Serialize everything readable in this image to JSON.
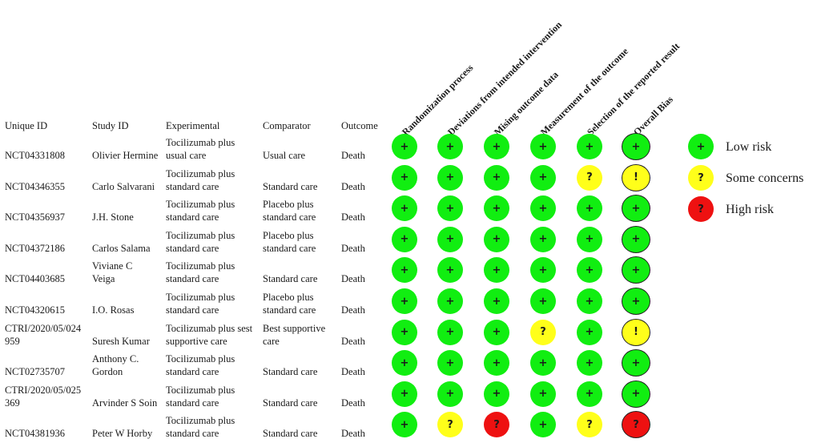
{
  "columns": {
    "unique_id": "Unique ID",
    "study_id": "Study ID",
    "experimental": "Experimental",
    "comparator": "Comparator",
    "outcome": "Outcome"
  },
  "domains": [
    "Randomization process",
    "Deviations from intended intervention",
    "Mising outcome data",
    "Measurement of the outcome",
    "Selection of the reported result",
    "Overall Bias"
  ],
  "rows": [
    {
      "unique_id": "NCT04331808",
      "study_id": "Olivier Hermine",
      "experimental": "Tocilizumab plus\nusual care",
      "comparator": "Usual care",
      "outcome": "Death",
      "judgements": [
        "low",
        "low",
        "low",
        "low",
        "low",
        "low"
      ]
    },
    {
      "unique_id": "NCT04346355",
      "study_id": "Carlo Salvarani",
      "experimental": "Tocilizumab plus\nstandard care",
      "comparator": "Standard care",
      "outcome": "Death",
      "judgements": [
        "low",
        "low",
        "low",
        "low",
        "some",
        "some"
      ]
    },
    {
      "unique_id": "NCT04356937",
      "study_id": "J.H. Stone",
      "experimental": "Tocilizumab plus\nstandard care",
      "comparator": "Placebo plus\nstandard care",
      "outcome": "Death",
      "judgements": [
        "low",
        "low",
        "low",
        "low",
        "low",
        "low"
      ]
    },
    {
      "unique_id": "NCT04372186",
      "study_id": "Carlos Salama",
      "experimental": "Tocilizumab plus\nstandard care",
      "comparator": "Placebo plus\nstandard care",
      "outcome": "Death",
      "judgements": [
        "low",
        "low",
        "low",
        "low",
        "low",
        "low"
      ]
    },
    {
      "unique_id": "NCT04403685",
      "study_id": "Viviane C\nVeiga",
      "experimental": "Tocilizumab plus\nstandard care",
      "comparator": "Standard care",
      "outcome": "Death",
      "judgements": [
        "low",
        "low",
        "low",
        "low",
        "low",
        "low"
      ]
    },
    {
      "unique_id": "NCT04320615",
      "study_id": "I.O. Rosas",
      "experimental": "Tocilizumab plus\nstandard care",
      "comparator": "Placebo plus\nstandard care",
      "outcome": "Death",
      "judgements": [
        "low",
        "low",
        "low",
        "low",
        "low",
        "low"
      ]
    },
    {
      "unique_id": "CTRI/2020/05/024\n959",
      "study_id": "Suresh Kumar",
      "experimental": "Tocilizumab plus sest\nsupportive care",
      "comparator": "Best supportive\ncare",
      "outcome": "Death",
      "judgements": [
        "low",
        "low",
        "low",
        "some",
        "low",
        "some"
      ]
    },
    {
      "unique_id": "NCT02735707",
      "study_id": "Anthony C.\nGordon",
      "experimental": "Tocilizumab plus\nstandard care",
      "comparator": "Standard care",
      "outcome": "Death",
      "judgements": [
        "low",
        "low",
        "low",
        "low",
        "low",
        "low"
      ]
    },
    {
      "unique_id": "CTRI/2020/05/025\n369",
      "study_id": "Arvinder S Soin",
      "experimental": "Tocilizumab plus\nstandard care",
      "comparator": "Standard care",
      "outcome": "Death",
      "judgements": [
        "low",
        "low",
        "low",
        "low",
        "low",
        "low"
      ]
    },
    {
      "unique_id": "NCT04381936",
      "study_id": "Peter W Horby",
      "experimental": "Tocilizumab plus\nstandard care",
      "comparator": "Standard care",
      "outcome": "Death",
      "judgements": [
        "low",
        "some",
        "high",
        "low",
        "some",
        "high"
      ]
    }
  ],
  "symbols": {
    "low": "+",
    "some": "?",
    "some_overall": "!",
    "high": "?"
  },
  "colors": {
    "low": "#11ee11",
    "some": "#ffff1a",
    "high": "#ee1111"
  },
  "legend": [
    {
      "key": "low",
      "label": "Low risk"
    },
    {
      "key": "some",
      "label": "Some concerns"
    },
    {
      "key": "high",
      "label": "High risk"
    }
  ]
}
